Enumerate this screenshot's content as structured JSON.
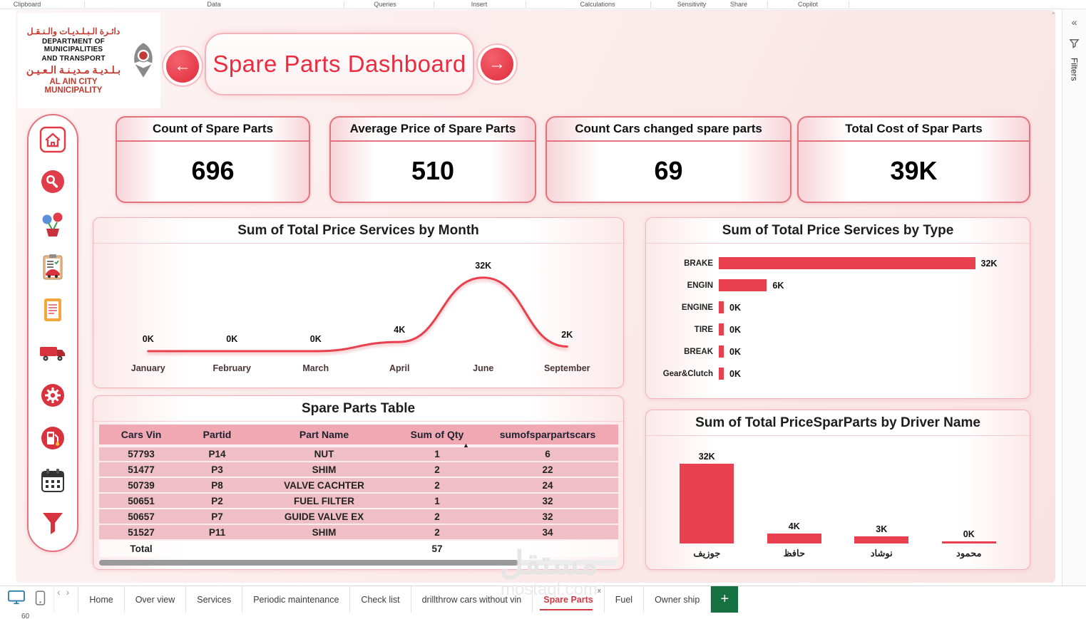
{
  "ribbon": {
    "items": [
      "Clipboard",
      "Data",
      "Queries",
      "Insert",
      "Calculations",
      "Sensitivity",
      "Share",
      "Copilot"
    ]
  },
  "filters_rail": {
    "collapse_icon": "«",
    "label": "Filters"
  },
  "header": {
    "logo": {
      "arabic_top": "دائـرة الـبـلـديـات والـنـقـل",
      "en_line1": "DEPARTMENT OF MUNICIPALITIES",
      "en_line2": "AND TRANSPORT",
      "arabic_bottom": "بـلـديـة مـديـنـة الـعـيـن",
      "en_line3": "AL AIN CITY MUNICIPALITY"
    },
    "title": "Spare Parts Dashboard",
    "back_glyph": "←",
    "forward_glyph": "→"
  },
  "kpis": [
    {
      "title": "Count of Spare Parts",
      "value": "696"
    },
    {
      "title": "Average Price of Spare Parts",
      "value": "510"
    },
    {
      "title": "Count Cars changed spare parts",
      "value": "69"
    },
    {
      "title": "Total Cost of Spar Parts",
      "value": "39K"
    }
  ],
  "panels": {
    "monthly_title": "Sum of Total Price Services by Month",
    "by_type_title": "Sum of Total Price Services by Type",
    "table_title": "Spare Parts Table",
    "by_driver_title": "Sum of Total PriceSparParts by Driver Name"
  },
  "table": {
    "columns": [
      "Cars Vin",
      "Partid",
      "Part Name",
      "Sum of Qty",
      "sumofsparpartscars"
    ],
    "rows": [
      [
        "57793",
        "P14",
        "NUT",
        "1",
        "6"
      ],
      [
        "51477",
        "P3",
        "SHIM",
        "2",
        "22"
      ],
      [
        "50739",
        "P8",
        "VALVE CACHTER",
        "2",
        "24"
      ],
      [
        "50651",
        "P2",
        "FUEL FILTER",
        "1",
        "32"
      ],
      [
        "50657",
        "P7",
        "GUIDE VALVE EX",
        "2",
        "32"
      ],
      [
        "51527",
        "P11",
        "SHIM",
        "2",
        "34"
      ]
    ],
    "total_row": [
      "Total",
      "",
      "",
      "57",
      ""
    ],
    "sort_icon": "▲"
  },
  "chart_data": [
    {
      "id": "monthly",
      "type": "line",
      "title": "Sum of Total Price Services by Month",
      "x": [
        "January",
        "February",
        "March",
        "April",
        "June",
        "September"
      ],
      "values": [
        0,
        0,
        0,
        4,
        32,
        2
      ],
      "labels": [
        "0K",
        "0K",
        "0K",
        "4K",
        "32K",
        "2K"
      ],
      "ylim": [
        0,
        35
      ],
      "line_color": "#e8404e"
    },
    {
      "id": "by_type",
      "type": "bar",
      "orientation": "horizontal",
      "title": "Sum of Total Price Services by Type",
      "categories": [
        "BRAKE",
        "ENGIN",
        "ENGINE",
        "TIRE",
        "BREAK",
        "Gear&Clutch"
      ],
      "values": [
        32,
        6,
        0,
        0,
        0,
        0
      ],
      "labels": [
        "32K",
        "6K",
        "0K",
        "0K",
        "0K",
        "0K"
      ],
      "xlim": [
        0,
        34
      ],
      "bar_color": "#e8404e"
    },
    {
      "id": "by_driver",
      "type": "bar",
      "orientation": "vertical",
      "title": "Sum of Total PriceSparParts by Driver Name",
      "categories": [
        "جوزيف",
        "حافظ",
        "نوشاد",
        "محمود"
      ],
      "values": [
        32,
        4,
        3,
        0
      ],
      "labels": [
        "32K",
        "4K",
        "3K",
        "0K"
      ],
      "ylim": [
        0,
        35
      ],
      "bar_color": "#e8404e"
    }
  ],
  "bottom_bar": {
    "tabs": [
      "Home",
      "Over view",
      "Services",
      "Periodic maintenance",
      "Check list",
      "drillthrow cars without vin",
      "Spare Parts",
      "Fuel",
      "Owner ship"
    ],
    "active_tab": "Spare Parts",
    "close_glyph": "x",
    "add_label": "+",
    "prev_glyph": "‹",
    "next_glyph": "›"
  },
  "status": {
    "corner_text": "60"
  },
  "watermark": {
    "line1": "مستقل",
    "line2": "mostaql.com"
  }
}
